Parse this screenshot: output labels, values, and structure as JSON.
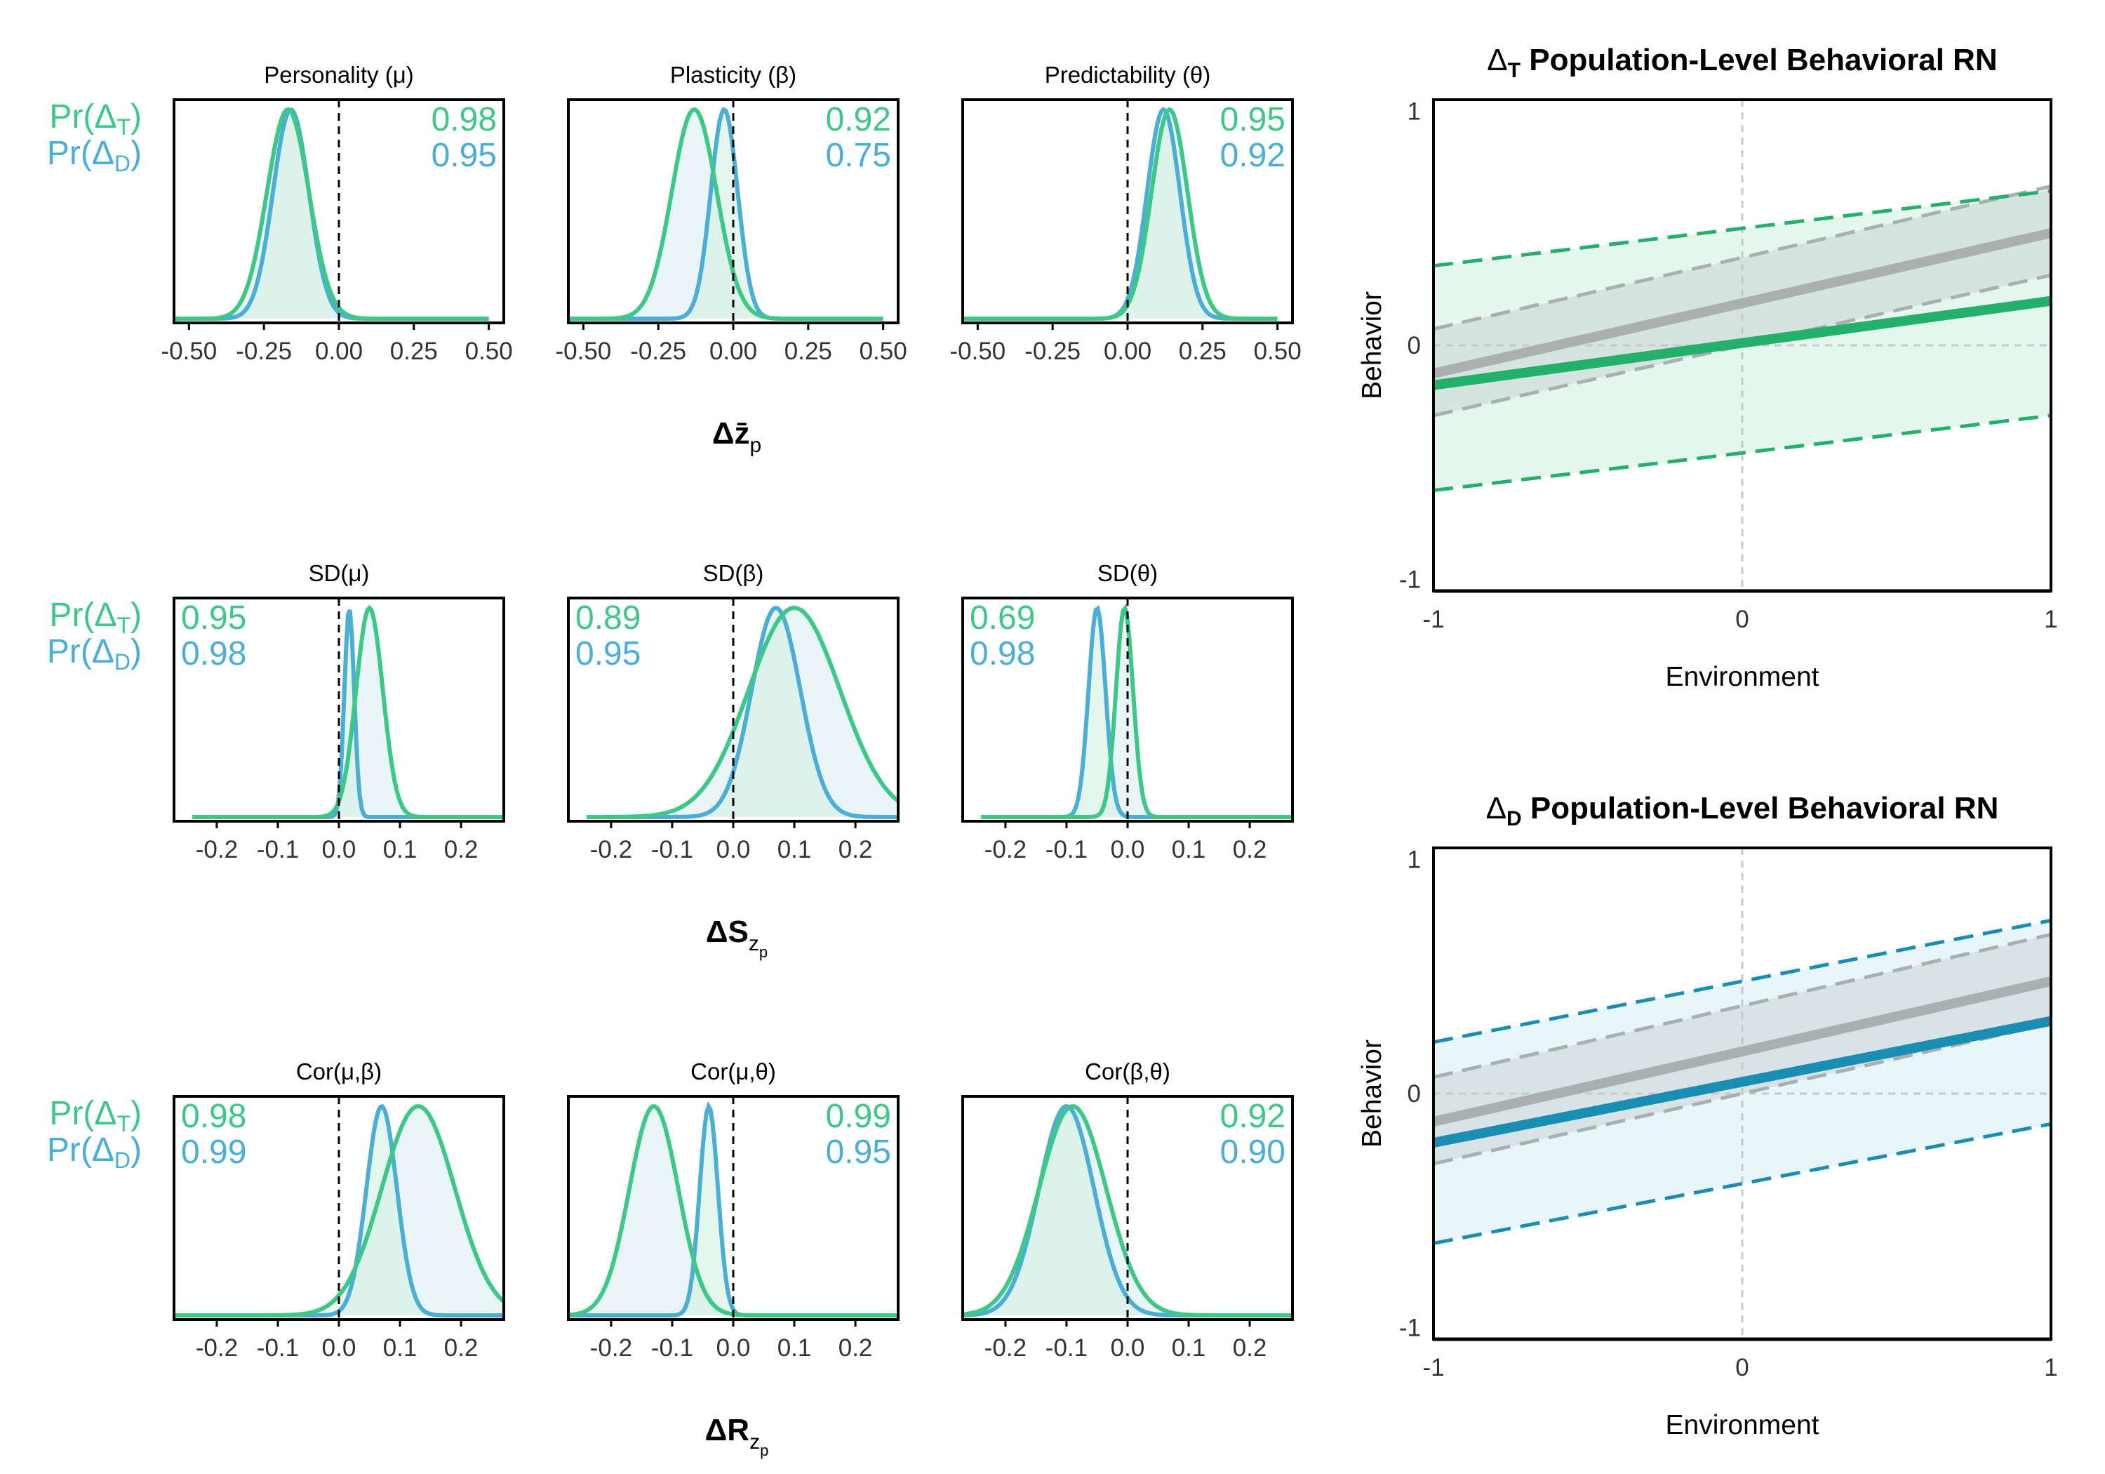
{
  "colors": {
    "treatment": "#3ec887",
    "treatment_dark": "#22b06a",
    "treatment_fill": "#cfeee0",
    "difference": "#4aaed6",
    "difference_dark": "#1a8db3",
    "difference_fill": "#d6ecf4",
    "overlap_fill": "#e8f4f6",
    "reference": "#aab0b0",
    "axis": "#000000",
    "tick_text": "#333333"
  },
  "prob_labels": {
    "treatment": "Pr(Δ",
    "treatment_sub": "T",
    "difference": "Pr(Δ",
    "difference_sub": "D",
    "close": ")"
  },
  "rows": [
    {
      "x_title": "Δz̄",
      "x_title_sub": "p",
      "x_title_subsub": "",
      "label_side": "right",
      "panels": [
        {
          "title": "Personality (μ)",
          "p_treatment": "0.98",
          "p_difference": "0.95"
        },
        {
          "title": "Plasticity (β)",
          "p_treatment": "0.92",
          "p_difference": "0.75"
        },
        {
          "title": "Predictability (θ)",
          "p_treatment": "0.95",
          "p_difference": "0.92"
        }
      ]
    },
    {
      "x_title": "ΔS",
      "x_title_sub": "z",
      "x_title_subsub": "p",
      "label_side": "left",
      "panels": [
        {
          "title": "SD(μ)",
          "p_treatment": "0.95",
          "p_difference": "0.98"
        },
        {
          "title": "SD(β)",
          "p_treatment": "0.89",
          "p_difference": "0.95"
        },
        {
          "title": "SD(θ)",
          "p_treatment": "0.69",
          "p_difference": "0.98"
        }
      ]
    },
    {
      "x_title": "ΔR",
      "x_title_sub": "z",
      "x_title_subsub": "p",
      "label_side": "mixed",
      "panels": [
        {
          "title": "Cor(μ,β)",
          "p_treatment": "0.98",
          "p_difference": "0.99"
        },
        {
          "title": "Cor(μ,θ)",
          "p_treatment": "0.99",
          "p_difference": "0.95"
        },
        {
          "title": "Cor(β,θ)",
          "p_treatment": "0.92",
          "p_difference": "0.90"
        }
      ]
    }
  ],
  "rn_panels": [
    {
      "title_delta": "Δ",
      "title_sub": "T",
      "title_rest": " Population-Level Behavioral RN",
      "xlabel": "Environment",
      "ylabel": "Behavior"
    },
    {
      "title_delta": "Δ",
      "title_sub": "D",
      "title_rest": " Population-Level Behavioral RN",
      "xlabel": "Environment",
      "ylabel": "Behavior"
    }
  ],
  "chart_data": [
    {
      "type": "area",
      "name": "posterior densities, row 1",
      "xlim": [
        -0.55,
        0.55
      ],
      "x_ticks": [
        "-0.50",
        "-0.25",
        "0.00",
        "0.25",
        "0.50"
      ],
      "x_tick_values": [
        -0.5,
        -0.25,
        0,
        0.25,
        0.5
      ],
      "reference_line": 0,
      "panels": [
        {
          "treatment": {
            "mean": -0.17,
            "sd": 0.07,
            "range": [
              -0.55,
              0.5
            ]
          },
          "difference": {
            "mean": -0.16,
            "sd": 0.06,
            "range": [
              -0.55,
              0.5
            ]
          }
        },
        {
          "treatment": {
            "mean": -0.13,
            "sd": 0.075,
            "range": [
              -0.55,
              0.5
            ]
          },
          "difference": {
            "mean": -0.03,
            "sd": 0.045,
            "range": [
              -0.55,
              0.5
            ]
          }
        },
        {
          "treatment": {
            "mean": 0.14,
            "sd": 0.06,
            "range": [
              -0.55,
              0.5
            ]
          },
          "difference": {
            "mean": 0.12,
            "sd": 0.055,
            "range": [
              -0.55,
              0.5
            ]
          }
        }
      ]
    },
    {
      "type": "area",
      "name": "posterior densities, row 2",
      "xlim": [
        -0.27,
        0.27
      ],
      "x_ticks": [
        "-0.2",
        "-0.1",
        "0.0",
        "0.1",
        "0.2"
      ],
      "x_tick_values": [
        -0.2,
        -0.1,
        0,
        0.1,
        0.2
      ],
      "reference_line": 0,
      "panels": [
        {
          "treatment": {
            "mean": 0.05,
            "sd": 0.022,
            "range": [
              -0.24,
              0.27
            ]
          },
          "difference": {
            "mean": 0.017,
            "sd": 0.008,
            "range": [
              -0.24,
              0.27
            ]
          }
        },
        {
          "treatment": {
            "mean": 0.1,
            "sd": 0.075,
            "range": [
              -0.24,
              0.27
            ]
          },
          "difference": {
            "mean": 0.07,
            "sd": 0.04,
            "range": [
              -0.24,
              0.27
            ]
          }
        },
        {
          "treatment": {
            "mean": -0.005,
            "sd": 0.014,
            "range": [
              -0.24,
              0.27
            ]
          },
          "difference": {
            "mean": -0.05,
            "sd": 0.014,
            "range": [
              -0.24,
              0.27
            ]
          }
        }
      ]
    },
    {
      "type": "area",
      "name": "posterior densities, row 3",
      "xlim": [
        -0.27,
        0.27
      ],
      "x_ticks": [
        "-0.2",
        "-0.1",
        "0.0",
        "0.1",
        "0.2"
      ],
      "x_tick_values": [
        -0.2,
        -0.1,
        0,
        0.1,
        0.2
      ],
      "reference_line": 0,
      "panels": [
        {
          "treatment": {
            "mean": 0.13,
            "sd": 0.06,
            "range": [
              -0.27,
              0.27
            ]
          },
          "difference": {
            "mean": 0.07,
            "sd": 0.025,
            "range": [
              -0.27,
              0.27
            ]
          }
        },
        {
          "treatment": {
            "mean": -0.13,
            "sd": 0.04,
            "range": [
              -0.27,
              0.27
            ]
          },
          "difference": {
            "mean": -0.04,
            "sd": 0.015,
            "range": [
              -0.27,
              0.27
            ]
          }
        },
        {
          "treatment": {
            "mean": -0.09,
            "sd": 0.055,
            "range": [
              -0.27,
              0.27
            ]
          },
          "difference": {
            "mean": -0.1,
            "sd": 0.045,
            "range": [
              -0.27,
              0.27
            ]
          }
        }
      ]
    },
    {
      "type": "line",
      "name": "ΔT Population-Level Behavioral RN",
      "xlim": [
        -1,
        1
      ],
      "ylim": [
        -1.05,
        1.05
      ],
      "x_ticks": [
        "-1",
        "0",
        "1"
      ],
      "y_ticks": [
        "-1",
        "0",
        "1"
      ],
      "reference": {
        "mean": [
          -0.12,
          0.48
        ],
        "lower": [
          -0.3,
          0.3
        ],
        "upper": [
          0.07,
          0.68
        ]
      },
      "effect": {
        "mean": [
          -0.17,
          0.19
        ],
        "lower": [
          -0.62,
          -0.3
        ],
        "upper": [
          0.34,
          0.66
        ]
      }
    },
    {
      "type": "line",
      "name": "ΔD Population-Level Behavioral RN",
      "xlim": [
        -1,
        1
      ],
      "ylim": [
        -1.05,
        1.05
      ],
      "x_ticks": [
        "-1",
        "0",
        "1"
      ],
      "y_ticks": [
        "-1",
        "0",
        "1"
      ],
      "reference": {
        "mean": [
          -0.12,
          0.48
        ],
        "lower": [
          -0.3,
          0.3
        ],
        "upper": [
          0.07,
          0.68
        ]
      },
      "effect": {
        "mean": [
          -0.21,
          0.31
        ],
        "lower": [
          -0.64,
          -0.13
        ],
        "upper": [
          0.22,
          0.74
        ]
      }
    }
  ]
}
